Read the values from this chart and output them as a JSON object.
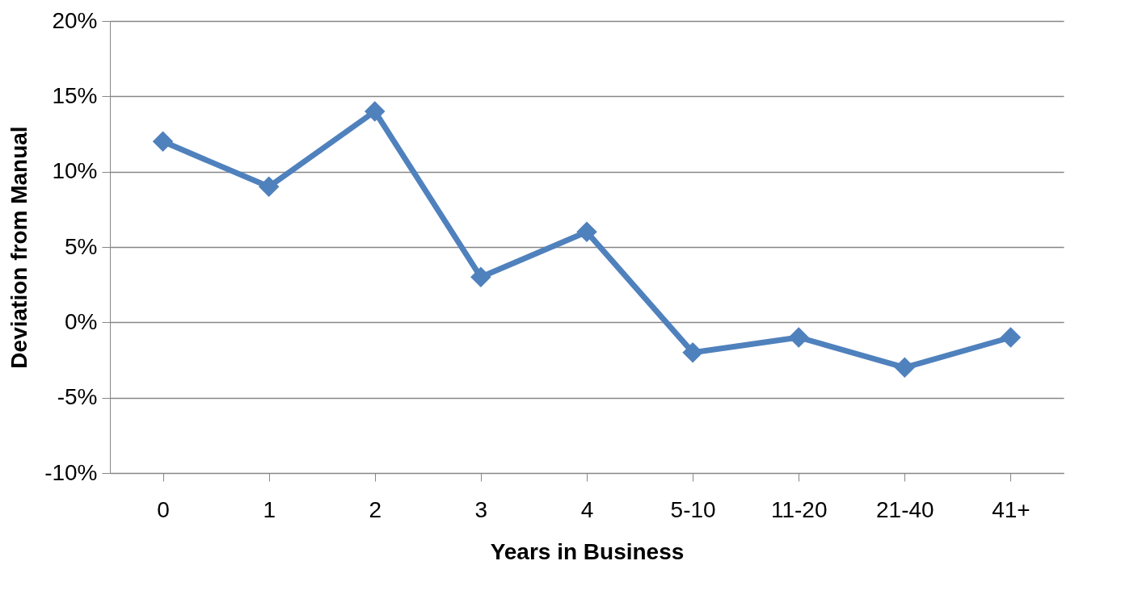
{
  "chart_data": {
    "type": "line",
    "xlabel": "Years in Business",
    "ylabel": "Deviation from Manual",
    "categories": [
      "0",
      "1",
      "2",
      "3",
      "4",
      "5-10",
      "11-20",
      "21-40",
      "41+"
    ],
    "series": [
      {
        "color": "#4f81bd",
        "values": [
          12,
          9,
          14,
          3,
          6,
          -2,
          -1,
          -3,
          -1
        ]
      }
    ],
    "ylim": [
      -10,
      20
    ],
    "yticks": [
      {
        "value": -10,
        "label": "-10%"
      },
      {
        "value": -5,
        "label": "-5%"
      },
      {
        "value": 0,
        "label": "0%"
      },
      {
        "value": 5,
        "label": "5%"
      },
      {
        "value": 10,
        "label": "10%"
      },
      {
        "value": 15,
        "label": "15%"
      },
      {
        "value": 20,
        "label": "20%"
      }
    ],
    "grid": "y",
    "marker": "diamond",
    "line_style": "solid"
  }
}
